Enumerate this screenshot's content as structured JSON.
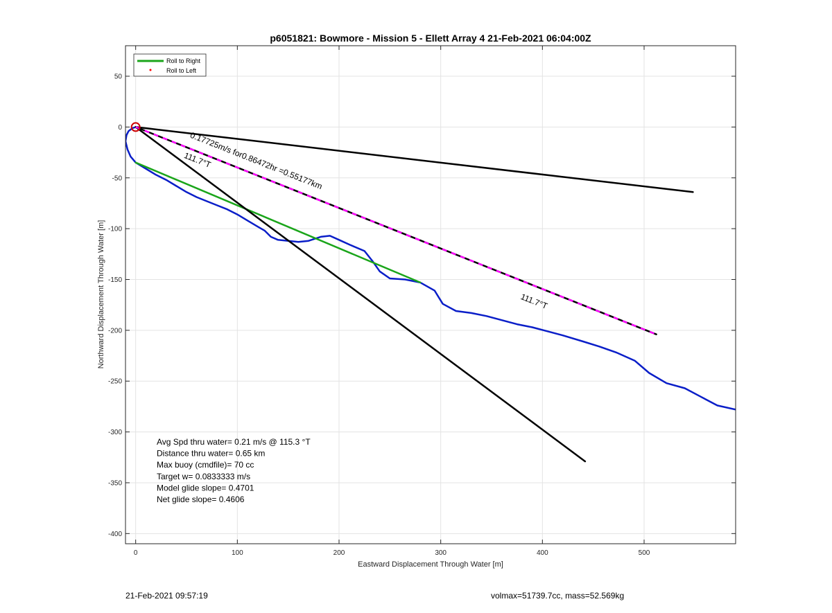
{
  "chart_data": {
    "type": "line",
    "title": "p6051821: Bowmore - Mission 5 - Ellett Array 4 21-Feb-2021 06:04:00Z",
    "xlabel": "Eastward Displacement Through Water [m]",
    "ylabel": "Northward Displacement Through Water [m]",
    "xlim": [
      -10,
      590
    ],
    "ylim": [
      -410,
      80
    ],
    "xticks": [
      0,
      100,
      200,
      300,
      400,
      500
    ],
    "yticks": [
      50,
      0,
      -50,
      -100,
      -150,
      -200,
      -250,
      -300,
      -350,
      -400
    ],
    "grid": true,
    "legend": {
      "position": "top-left",
      "entries": [
        {
          "label": "Roll to Right",
          "color": "#1aa51a",
          "style": "line"
        },
        {
          "label": "Roll to Left",
          "color": "#ff0000",
          "style": "dot"
        }
      ]
    },
    "series": [
      {
        "color": "#0a1ec8",
        "x": [
          0,
          -3,
          -7,
          -9,
          -10,
          -8,
          -5,
          0,
          10,
          20,
          30,
          40,
          50,
          60,
          70,
          80,
          90,
          100,
          110,
          120,
          127,
          133,
          140,
          150,
          160,
          170,
          176,
          182,
          191,
          200,
          211,
          225,
          233,
          240,
          250,
          265,
          280,
          294,
          302,
          315,
          330,
          345,
          360,
          375,
          390,
          405,
          420,
          440,
          456,
          473,
          491,
          505,
          522,
          540,
          555,
          572,
          590
        ],
        "y": [
          0,
          -1,
          -4,
          -8,
          -14,
          -22,
          -29,
          -35,
          -41,
          -47,
          -52,
          -58,
          -64,
          -69,
          -73,
          -77,
          -81,
          -86,
          -92,
          -98,
          -102,
          -108,
          -111,
          -112,
          -113,
          -112,
          -110,
          -108,
          -107,
          -111,
          -116,
          -122,
          -132,
          -142,
          -149,
          -150,
          -153,
          -161,
          -174,
          -181,
          -183,
          -186,
          -190,
          -194,
          -197,
          -201,
          -205,
          -211,
          -216,
          -222,
          -230,
          -242,
          -252,
          -257,
          -265,
          -274,
          -278
        ]
      },
      {
        "color": "#1aa51a",
        "x": [
          0,
          280
        ],
        "y": [
          -35,
          -153
        ]
      },
      {
        "color": "#000000",
        "x": [
          0,
          548
        ],
        "y": [
          0,
          -64
        ]
      },
      {
        "color": "#000000",
        "x": [
          0,
          442
        ],
        "y": [
          0,
          -329
        ]
      },
      {
        "color": "#000000",
        "dash_color": "#ff00ff",
        "x": [
          0,
          512
        ],
        "y": [
          0,
          -204
        ]
      }
    ],
    "start_marker": {
      "x": 0,
      "y": 0,
      "color": "#cc0000"
    },
    "annotations": [
      {
        "text": "0.17725m/s for0.86472hr =0.55177km",
        "x": 53,
        "y": -10,
        "angle": 21.7
      },
      {
        "text": "111.7°T",
        "x": 47,
        "y": -30,
        "angle": 21.7
      },
      {
        "text": "111.7°T",
        "x": 378,
        "y": -169,
        "angle": 21.7
      }
    ],
    "info_lines": [
      "Avg Spd thru water=  0.21 m/s @ 115.3 °T",
      "Distance thru water=  0.65 km",
      "Max buoy (cmdfile)= 70 cc",
      "Target w= 0.0833333 m/s",
      "Model glide slope= 0.4701",
      "Net glide slope= 0.4606"
    ]
  },
  "footer": {
    "timestamp": "21-Feb-2021 09:57:19",
    "vol_mass": "volmax=51739.7cc, mass=52.569kg"
  }
}
